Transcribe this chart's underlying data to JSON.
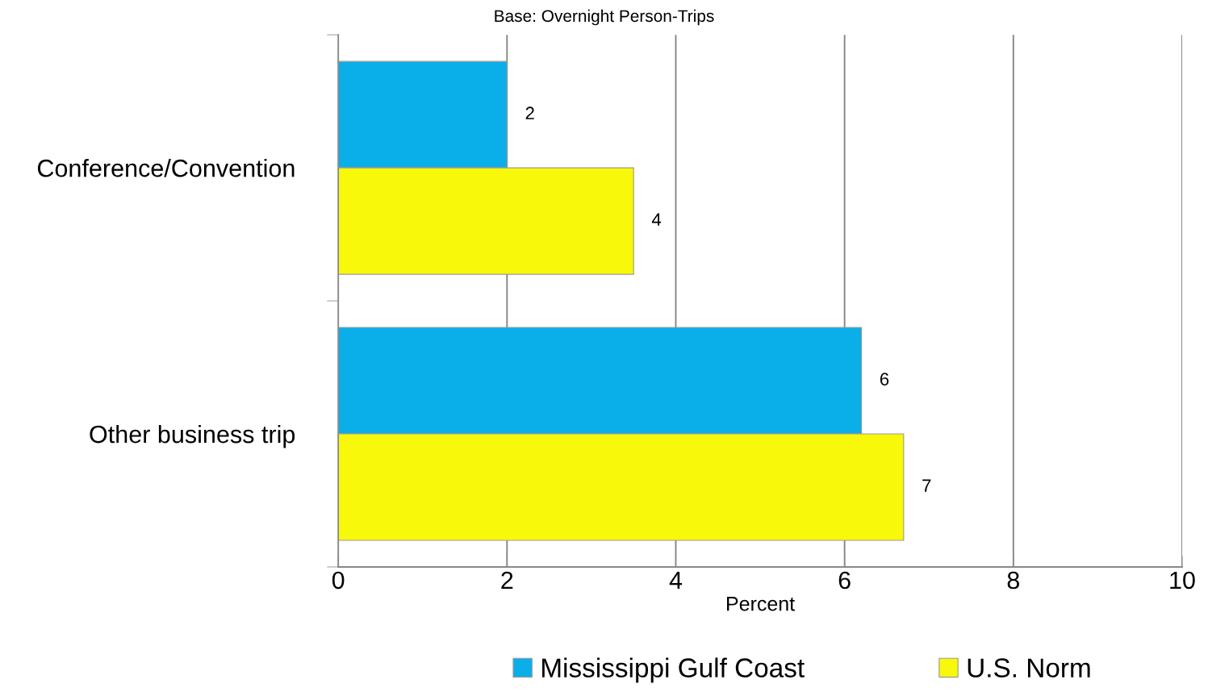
{
  "chart_data": {
    "type": "bar",
    "orientation": "horizontal",
    "title": "Base: Overnight Person-Trips",
    "xlabel": "Percent",
    "categories": [
      "Conference/Convention",
      "Other business trip"
    ],
    "series": [
      {
        "name": "Mississippi Gulf Coast",
        "color": "#0aafea",
        "values": [
          2.0,
          6.2
        ],
        "value_labels": [
          "2",
          "6"
        ]
      },
      {
        "name": "U.S. Norm",
        "color": "#f8f80a",
        "values": [
          3.5,
          6.7
        ],
        "value_labels": [
          "4",
          "7"
        ]
      }
    ],
    "xlim": [
      0,
      10
    ],
    "xticks": [
      0,
      2,
      4,
      6,
      8,
      10
    ],
    "grid": "x",
    "legend": "bottom"
  }
}
